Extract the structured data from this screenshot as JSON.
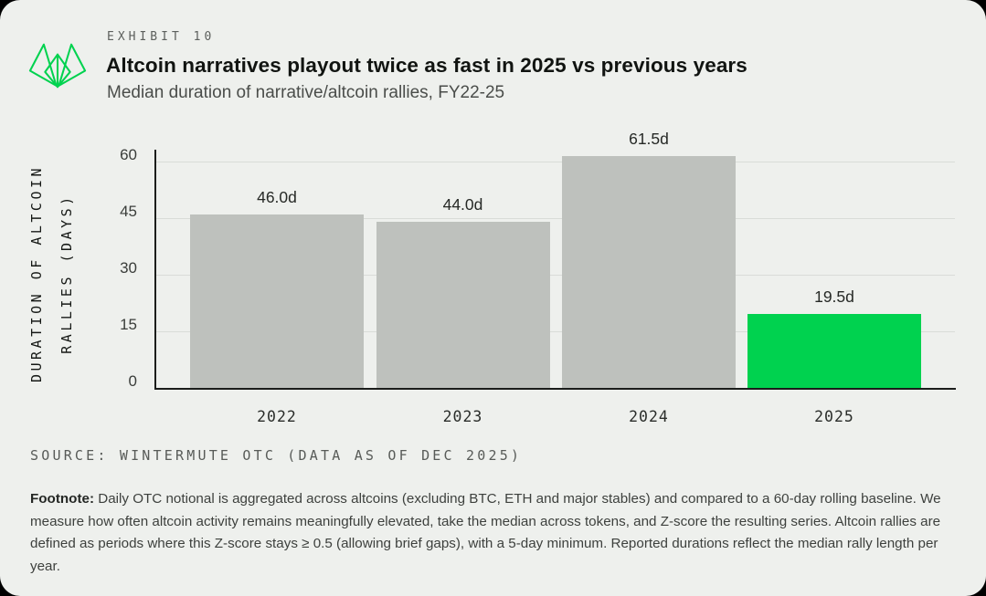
{
  "header": {
    "exhibit_label": "EXHIBIT 10",
    "title": "Altcoin narratives playout twice as fast in 2025 vs previous years",
    "subtitle": "Median duration of narrative/altcoin rallies, FY22-25"
  },
  "chart_data": {
    "type": "bar",
    "categories": [
      "2022",
      "2023",
      "2024",
      "2025"
    ],
    "values": [
      46.0,
      44.0,
      61.5,
      19.5
    ],
    "value_labels": [
      "46.0d",
      "44.0d",
      "61.5d",
      "19.5d"
    ],
    "title": "Altcoin narratives playout twice as fast in 2025 vs previous years",
    "xlabel": "",
    "ylabel": "DURATION OF ALTCOIN RALLIES (DAYS)",
    "ylabel_lines": [
      "DURATION OF ALTCOIN",
      "RALLIES (DAYS)"
    ],
    "yticks": [
      0,
      15,
      30,
      45,
      60
    ],
    "ylim": [
      0,
      64
    ],
    "grid": "horizontal",
    "legend": "none",
    "bar_colors": [
      "#bec1bd",
      "#bec1bd",
      "#bec1bd",
      "#00d24f"
    ]
  },
  "colors": {
    "green": "#00d24f",
    "bar_gray": "#bec1bd",
    "card_background": "#eef0ed",
    "axis": "#1b1d1b",
    "gridline": "#d9dcd8"
  },
  "source": "SOURCE: WINTERMUTE OTC (DATA AS OF DEC 2025)",
  "footnote": {
    "label": "Footnote:",
    "text": " Daily OTC notional is aggregated across altcoins (excluding BTC, ETH and major stables) and compared to a 60-day rolling baseline. We measure how often altcoin activity remains meaningfully elevated, take the median across tokens, and Z-score the resulting series. Altcoin rallies are defined as periods where this Z-score stays ≥ 0.5 (allowing brief gaps), with a 5-day minimum. Reported durations reflect the median rally length per year."
  }
}
